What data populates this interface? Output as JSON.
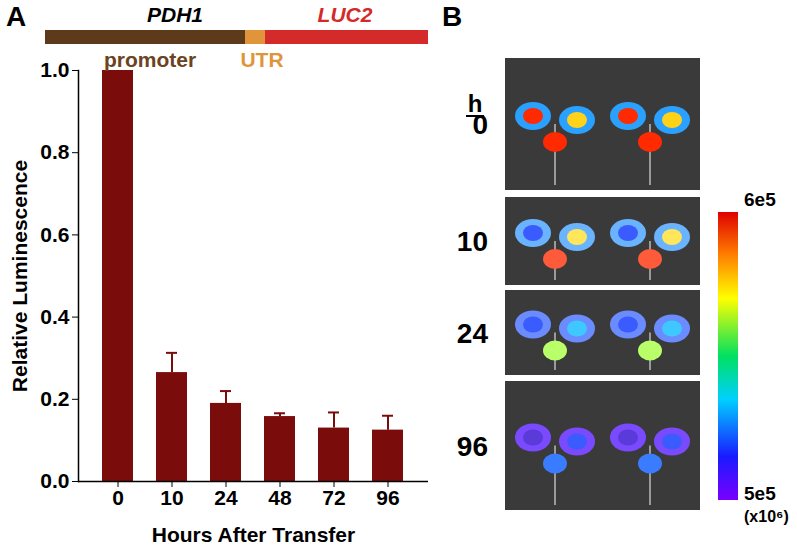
{
  "panel_labels": [
    "A",
    "B"
  ],
  "construct": {
    "genes": [
      "PDH1",
      "LUC2"
    ],
    "regions": [
      "promoter",
      "UTR"
    ]
  },
  "chart_data": {
    "type": "bar",
    "categories": [
      "0",
      "10",
      "24",
      "48",
      "72",
      "96"
    ],
    "values": [
      1.0,
      0.265,
      0.19,
      0.158,
      0.13,
      0.125
    ],
    "errors": [
      0,
      0.048,
      0.03,
      0.008,
      0.038,
      0.035
    ],
    "color": "#7b0c0c",
    "x_label": "Hours After Transfer",
    "y_label": "Relative Luminescence",
    "ylim": [
      0,
      1
    ],
    "yticks": [
      {
        "value": 0,
        "label": "0.0"
      },
      {
        "value": 0.2,
        "label": "0.2"
      },
      {
        "value": 0.4,
        "label": "0.4"
      },
      {
        "value": 0.6,
        "label": "0.6"
      },
      {
        "value": 0.8,
        "label": "0.8"
      },
      {
        "value": 1,
        "label": "1.0"
      }
    ]
  },
  "images": {
    "time_unit": "h",
    "times": [
      0,
      10,
      24,
      96
    ],
    "colorbar": {
      "top_label": "6e5",
      "bottom_label": "5e5",
      "multiplier": "(x10⁶)"
    }
  }
}
